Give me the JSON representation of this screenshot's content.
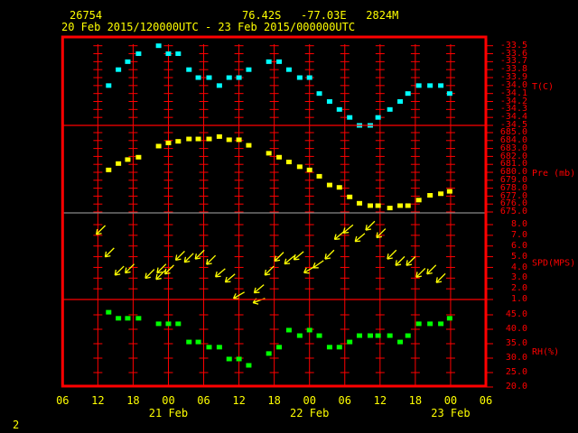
{
  "header": {
    "station": "26754",
    "location": "76.42S   -77.03E   2824M",
    "period": "20 Feb 2015/120000UTC - 23 Feb 2015/000000UTC",
    "page_number": "2"
  },
  "colors": {
    "frame": "#ff0000",
    "text": "#ffff00",
    "axis_text": "#ff0000",
    "temperature": "#00ffff",
    "pressure": "#ffff00",
    "wind": "#ffff00",
    "humidity": "#00ff00"
  },
  "chart_data": {
    "type": "scatter",
    "x_range": [
      "2015-02-20T06:00",
      "2015-02-23T06:00"
    ],
    "x_tick_labels": [
      "06",
      "12",
      "18",
      "00",
      "06",
      "12",
      "18",
      "00",
      "06",
      "12",
      "18",
      "00",
      "06"
    ],
    "date_labels": [
      {
        "label": "21 Feb",
        "at": "2015-02-21T00:00"
      },
      {
        "label": "22 Feb",
        "at": "2015-02-22T00:00"
      },
      {
        "label": "23 Feb",
        "at": "2015-02-23T00:00"
      }
    ],
    "grid": true,
    "times": [
      "2015-02-20T13:50",
      "2015-02-20T15:30",
      "2015-02-20T17:05",
      "2015-02-20T18:55",
      "2015-02-20T22:20",
      "2015-02-21T00:00",
      "2015-02-21T01:40",
      "2015-02-21T03:30",
      "2015-02-21T05:05",
      "2015-02-21T06:55",
      "2015-02-21T08:40",
      "2015-02-21T10:20",
      "2015-02-21T12:00",
      "2015-02-21T13:40",
      "2015-02-21T17:05",
      "2015-02-21T18:50",
      "2015-02-21T20:30",
      "2015-02-21T22:20",
      "2015-02-22T00:00",
      "2015-02-22T01:40",
      "2015-02-22T03:25",
      "2015-02-22T05:05",
      "2015-02-22T06:50",
      "2015-02-22T08:30",
      "2015-02-22T10:20",
      "2015-02-22T11:40",
      "2015-02-22T13:40",
      "2015-02-22T15:25",
      "2015-02-22T16:45",
      "2015-02-22T18:35",
      "2015-02-22T20:30",
      "2015-02-22T22:20",
      "2015-02-22T23:50"
    ],
    "panels": [
      {
        "id": "temperature",
        "label": "T(C)",
        "ylim": [
          -34.5,
          -33.5
        ],
        "tick_labels": [
          "-33.5",
          "-33.6",
          "-33.7",
          "-33.8",
          "-33.9",
          "-34.0",
          "-34.1",
          "-34.2",
          "-34.3",
          "-34.4",
          "-34.5"
        ],
        "values": [
          -34.0,
          -33.8,
          -33.7,
          -33.6,
          -33.5,
          -33.6,
          -33.6,
          -33.8,
          -33.9,
          -33.9,
          -34.0,
          -33.9,
          -33.9,
          -33.8,
          -33.7,
          -33.7,
          -33.8,
          -33.9,
          -33.9,
          -34.1,
          -34.2,
          -34.3,
          -34.4,
          -34.5,
          -34.5,
          -34.4,
          -34.3,
          -34.2,
          -34.1,
          -34.0,
          -34.0,
          -34.0,
          -34.1
        ]
      },
      {
        "id": "pressure",
        "label": "Pre (mb)",
        "ylim": [
          675.0,
          685.0
        ],
        "tick_labels": [
          "685.0",
          "684.0",
          "683.0",
          "682.0",
          "681.0",
          "680.0",
          "679.0",
          "678.0",
          "677.0",
          "676.0",
          "675.0"
        ],
        "values": [
          680.3,
          681.1,
          681.6,
          681.9,
          683.3,
          683.7,
          683.9,
          684.2,
          684.2,
          684.2,
          684.5,
          684.1,
          684.1,
          683.4,
          682.4,
          681.9,
          681.3,
          680.7,
          680.3,
          679.5,
          678.4,
          678.1,
          676.9,
          676.1,
          675.8,
          675.8,
          675.5,
          675.8,
          675.8,
          676.5,
          677.1,
          677.3,
          677.6
        ]
      },
      {
        "id": "wind",
        "label": "SPD(MPS)",
        "ylim": [
          1.0,
          8.0
        ],
        "tick_labels": [
          "8.0",
          "7.0",
          "6.0",
          "5.0",
          "4.0",
          "3.0",
          "2.0",
          "1.0"
        ],
        "wind_obs": [
          {
            "t": "2015-02-20T12:30",
            "spd": 7.5,
            "dir": 45
          },
          {
            "t": "2015-02-20T14:00",
            "spd": 5.4,
            "dir": 45
          },
          {
            "t": "2015-02-20T15:40",
            "spd": 3.7,
            "dir": 45
          },
          {
            "t": "2015-02-20T17:25",
            "spd": 3.9,
            "dir": 45
          },
          {
            "t": "2015-02-20T20:50",
            "spd": 3.4,
            "dir": 45
          },
          {
            "t": "2015-02-20T22:40",
            "spd": 3.3,
            "dir": 45
          },
          {
            "t": "2015-02-20T22:50",
            "spd": 3.9,
            "dir": 45
          },
          {
            "t": "2015-02-21T00:10",
            "spd": 3.8,
            "dir": 45
          },
          {
            "t": "2015-02-21T02:00",
            "spd": 5.1,
            "dir": 45
          },
          {
            "t": "2015-02-21T03:30",
            "spd": 4.9,
            "dir": 45
          },
          {
            "t": "2015-02-21T05:20",
            "spd": 5.2,
            "dir": 45
          },
          {
            "t": "2015-02-21T07:15",
            "spd": 4.7,
            "dir": 45
          },
          {
            "t": "2015-02-21T08:50",
            "spd": 3.5,
            "dir": 50
          },
          {
            "t": "2015-02-21T10:30",
            "spd": 3.0,
            "dir": 50
          },
          {
            "t": "2015-02-21T12:00",
            "spd": 1.4,
            "dir": 60
          },
          {
            "t": "2015-02-21T15:25",
            "spd": 2.0,
            "dir": 50
          },
          {
            "t": "2015-02-21T15:25",
            "spd": 0.9,
            "dir": 70
          },
          {
            "t": "2015-02-21T17:10",
            "spd": 3.7,
            "dir": 45
          },
          {
            "t": "2015-02-21T18:50",
            "spd": 5.0,
            "dir": 45
          },
          {
            "t": "2015-02-21T20:35",
            "spd": 4.7,
            "dir": 50
          },
          {
            "t": "2015-02-21T22:10",
            "spd": 5.1,
            "dir": 50
          },
          {
            "t": "2015-02-22T00:00",
            "spd": 3.8,
            "dir": 60
          },
          {
            "t": "2015-02-22T01:30",
            "spd": 4.3,
            "dir": 55
          },
          {
            "t": "2015-02-22T03:25",
            "spd": 5.2,
            "dir": 45
          },
          {
            "t": "2015-02-22T05:05",
            "spd": 7.0,
            "dir": 50
          },
          {
            "t": "2015-02-22T06:35",
            "spd": 7.6,
            "dir": 50
          },
          {
            "t": "2015-02-22T08:35",
            "spd": 6.8,
            "dir": 50
          },
          {
            "t": "2015-02-22T10:20",
            "spd": 7.9,
            "dir": 45
          },
          {
            "t": "2015-02-22T12:10",
            "spd": 7.2,
            "dir": 45
          },
          {
            "t": "2015-02-22T14:00",
            "spd": 5.2,
            "dir": 45
          },
          {
            "t": "2015-02-22T15:25",
            "spd": 4.6,
            "dir": 45
          },
          {
            "t": "2015-02-22T17:15",
            "spd": 4.6,
            "dir": 45
          },
          {
            "t": "2015-02-22T18:55",
            "spd": 3.5,
            "dir": 45
          },
          {
            "t": "2015-02-22T20:45",
            "spd": 3.8,
            "dir": 45
          },
          {
            "t": "2015-02-22T22:20",
            "spd": 3.0,
            "dir": 45
          }
        ]
      },
      {
        "id": "humidity",
        "label": "RH(%)",
        "ylim": [
          20.0,
          45.0
        ],
        "tick_labels": [
          "45.0",
          "40.0",
          "35.0",
          "30.0",
          "25.0",
          "20.0"
        ],
        "values": [
          45.9,
          43.8,
          43.8,
          43.8,
          41.9,
          41.9,
          41.9,
          35.6,
          35.6,
          33.8,
          33.8,
          29.7,
          29.7,
          27.5,
          31.6,
          33.8,
          39.7,
          37.8,
          39.7,
          37.8,
          33.8,
          33.8,
          35.6,
          37.8,
          37.8,
          37.8,
          37.8,
          35.6,
          37.8,
          41.9,
          41.9,
          41.9,
          43.8
        ]
      }
    ]
  }
}
